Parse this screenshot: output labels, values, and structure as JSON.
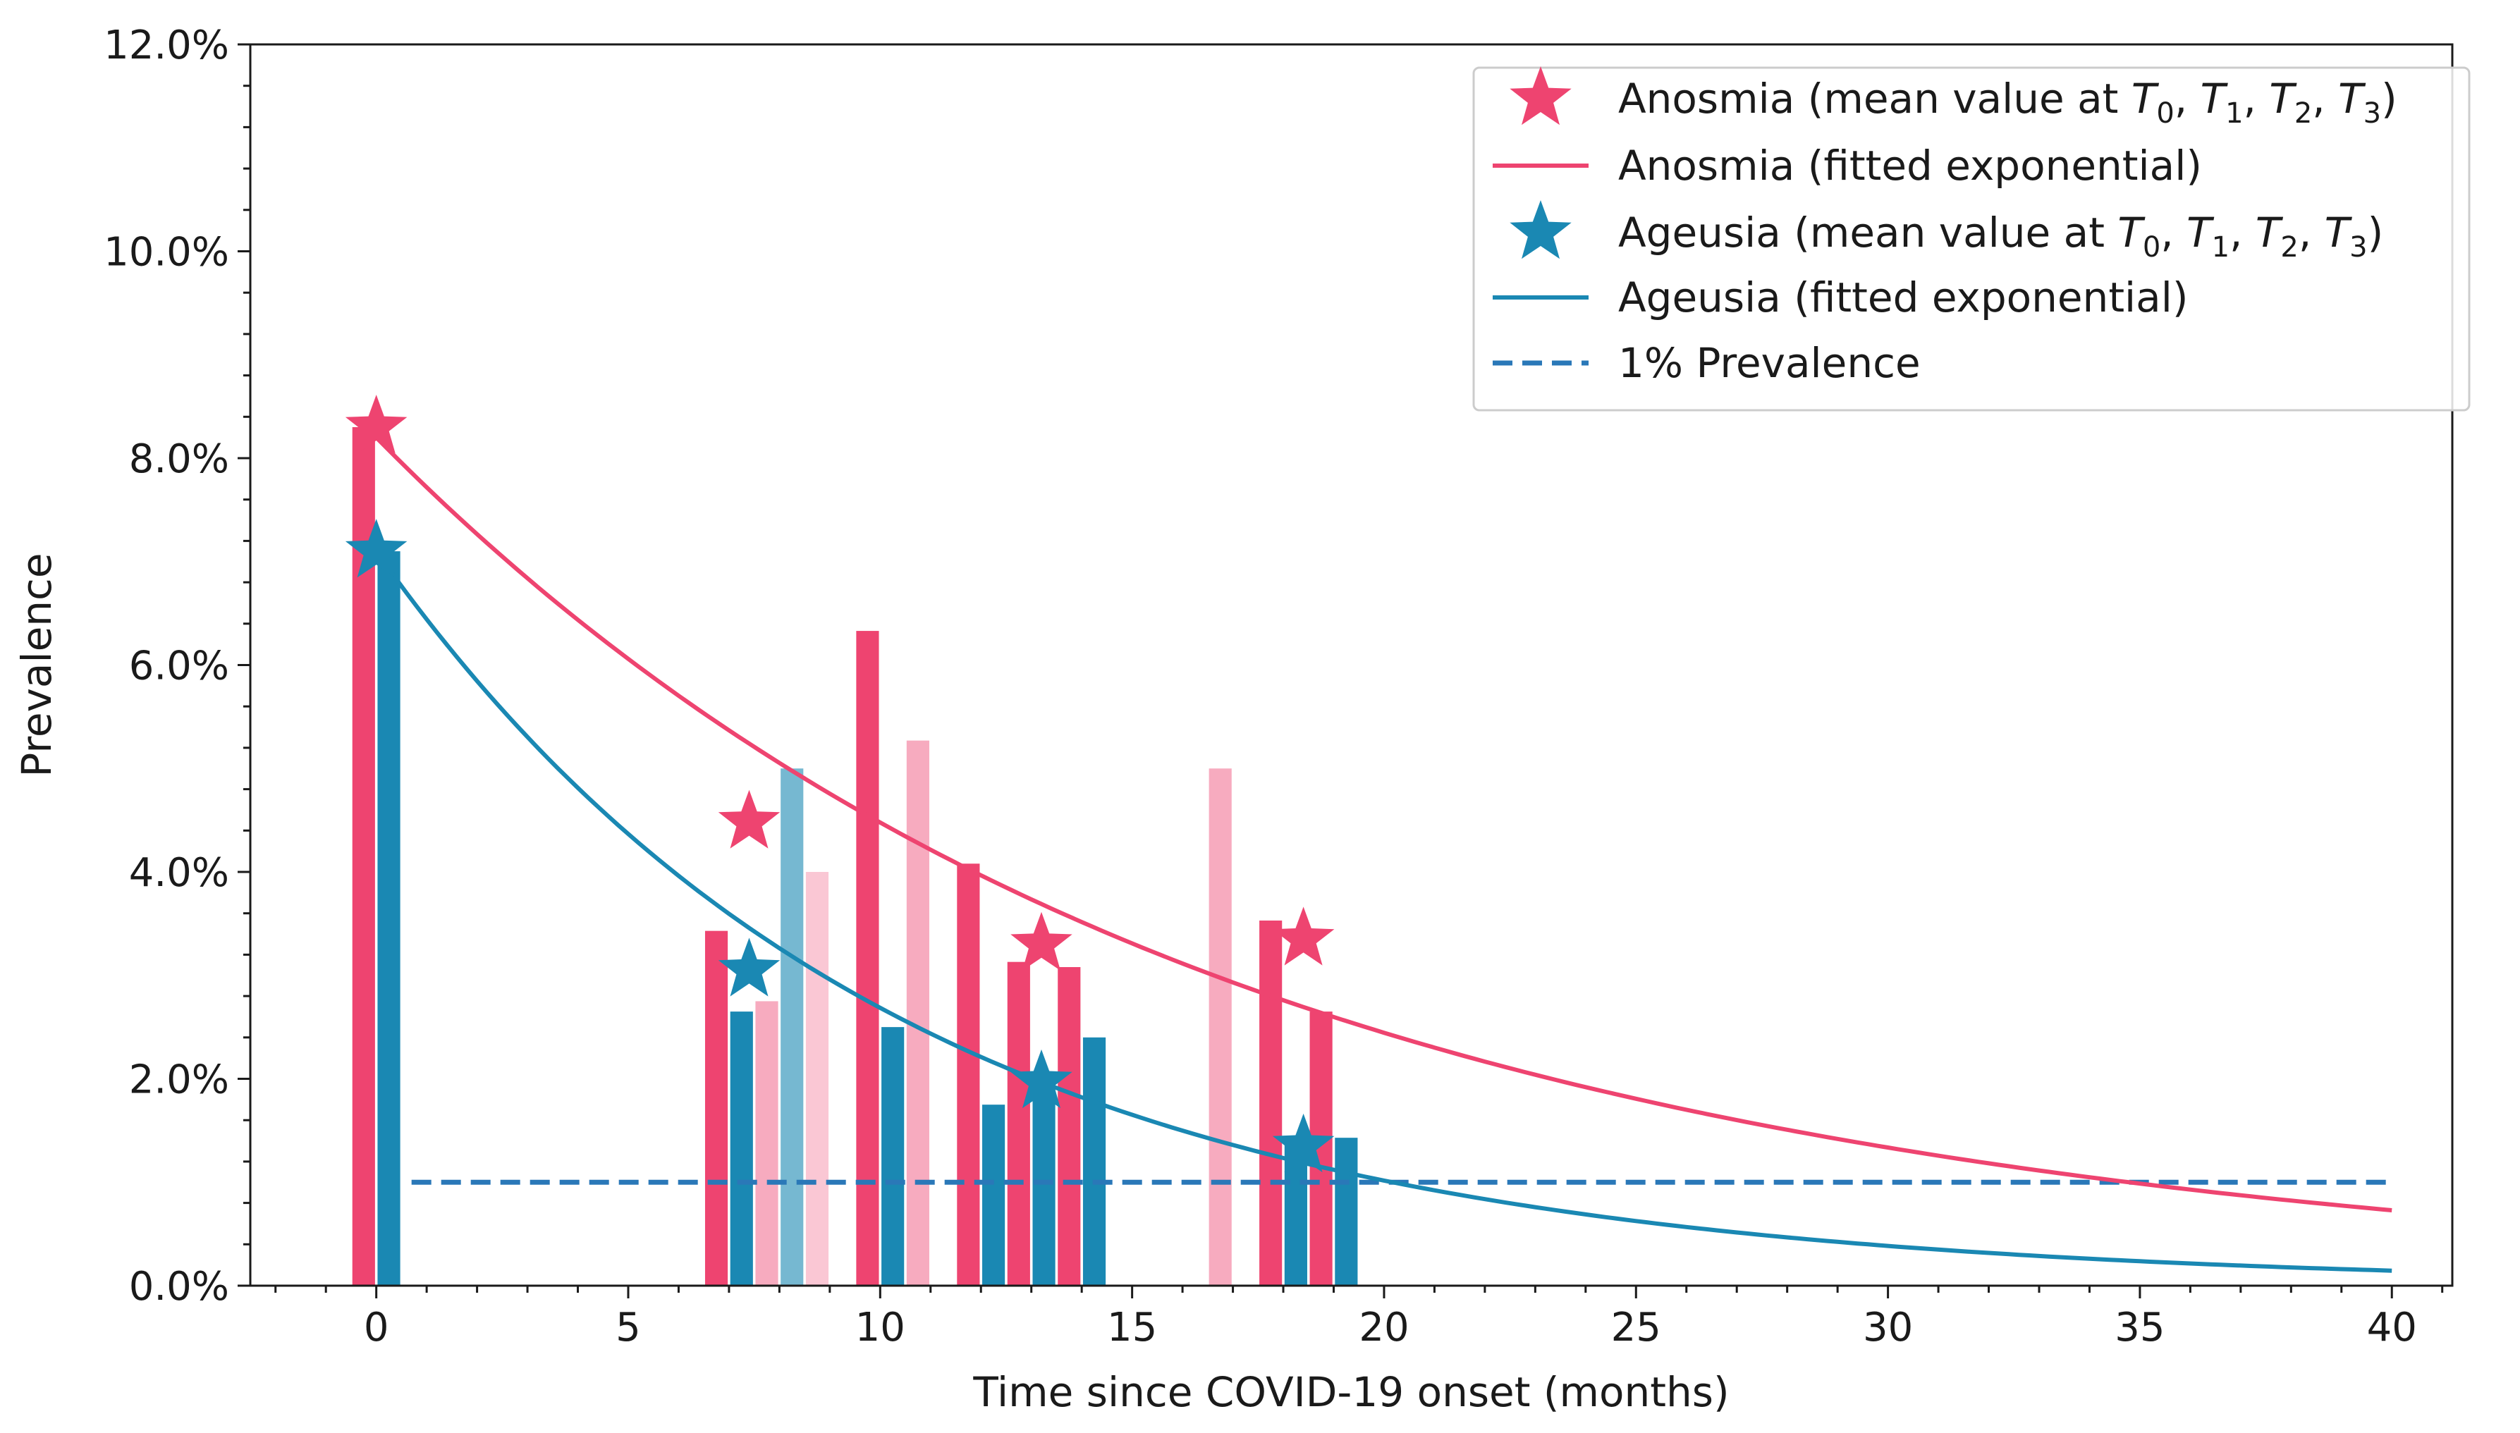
{
  "chart_data": {
    "type": "bar",
    "xlabel": "Time since COVID-19 onset (months)",
    "ylabel": "Prevalence",
    "xlim": [
      -2.5,
      41.2
    ],
    "ylim": [
      0,
      12
    ],
    "x_ticks": [
      0,
      5,
      10,
      15,
      20,
      25,
      30,
      35,
      40
    ],
    "x_tick_labels": [
      "0",
      "5",
      "10",
      "15",
      "20",
      "25",
      "30",
      "35",
      "40"
    ],
    "y_ticks": [
      0,
      2,
      4,
      6,
      8,
      10,
      12
    ],
    "y_tick_labels": [
      "0.0%",
      "2.0%",
      "4.0%",
      "6.0%",
      "8.0%",
      "10.0%",
      "12.0%"
    ],
    "x_minor_step": 1,
    "y_minor_step": 0.4,
    "colors": {
      "anosmia": "#ee4470",
      "anosmia_light": "#f4a8bd",
      "ageusia": "#1a88b3",
      "ageusia_light": "#75b8d3",
      "reference": "#2a78b8"
    },
    "bars": [
      {
        "x": -0.25,
        "value": 8.3,
        "series": "anosmia",
        "alpha": 1.0
      },
      {
        "x": 0.25,
        "value": 7.1,
        "series": "ageusia",
        "alpha": 1.0
      },
      {
        "x": 6.75,
        "value": 3.43,
        "series": "anosmia",
        "alpha": 1.0
      },
      {
        "x": 7.25,
        "value": 2.65,
        "series": "ageusia",
        "alpha": 1.0
      },
      {
        "x": 7.75,
        "value": 2.75,
        "series": "anosmia",
        "alpha": 0.45
      },
      {
        "x": 8.25,
        "value": 5.0,
        "series": "ageusia",
        "alpha": 0.6
      },
      {
        "x": 8.75,
        "value": 4.0,
        "series": "anosmia",
        "alpha": 0.3
      },
      {
        "x": 9.75,
        "value": 6.33,
        "series": "anosmia",
        "alpha": 1.0
      },
      {
        "x": 10.25,
        "value": 2.5,
        "series": "ageusia",
        "alpha": 1.0
      },
      {
        "x": 10.75,
        "value": 5.27,
        "series": "anosmia",
        "alpha": 0.45
      },
      {
        "x": 11.75,
        "value": 4.08,
        "series": "anosmia",
        "alpha": 1.0
      },
      {
        "x": 12.25,
        "value": 1.75,
        "series": "ageusia",
        "alpha": 1.0
      },
      {
        "x": 12.75,
        "value": 3.13,
        "series": "anosmia",
        "alpha": 1.0
      },
      {
        "x": 13.25,
        "value": 1.95,
        "series": "ageusia",
        "alpha": 1.0
      },
      {
        "x": 13.75,
        "value": 3.08,
        "series": "anosmia",
        "alpha": 1.0
      },
      {
        "x": 14.25,
        "value": 2.4,
        "series": "ageusia",
        "alpha": 1.0
      },
      {
        "x": 16.75,
        "value": 5.0,
        "series": "anosmia",
        "alpha": 0.45
      },
      {
        "x": 17.75,
        "value": 3.53,
        "series": "anosmia",
        "alpha": 1.0
      },
      {
        "x": 18.25,
        "value": 1.4,
        "series": "ageusia",
        "alpha": 1.0
      },
      {
        "x": 18.75,
        "value": 2.65,
        "series": "anosmia",
        "alpha": 1.0
      },
      {
        "x": 19.25,
        "value": 1.43,
        "series": "ageusia",
        "alpha": 1.0
      }
    ],
    "bar_width": 0.45,
    "mean_points": [
      {
        "series": "anosmia",
        "x": [
          0,
          7.4,
          13.2,
          18.4
        ],
        "y": [
          8.3,
          4.48,
          3.3,
          3.35
        ]
      },
      {
        "series": "ageusia",
        "x": [
          0,
          7.4,
          13.2,
          18.4
        ],
        "y": [
          7.1,
          3.05,
          1.97,
          1.35
        ]
      }
    ],
    "fitted": [
      {
        "series": "anosmia",
        "a": 8.2,
        "k": 0.0605,
        "x_range": [
          0,
          40
        ]
      },
      {
        "series": "ageusia",
        "a": 7.1,
        "k": 0.0972,
        "x_range": [
          0,
          40
        ]
      }
    ],
    "reference_line": {
      "y": 1.0,
      "x_range": [
        0.7,
        40
      ]
    },
    "legend": {
      "position": "top-right",
      "entries": [
        {
          "marker": "star",
          "series": "anosmia",
          "text": "Anosmia (mean value at ",
          "vars": [
            "T",
            "0",
            "T",
            "1",
            "T",
            "2",
            "T",
            "3"
          ]
        },
        {
          "marker": "line",
          "series": "anosmia",
          "text": "Anosmia (fitted exponential)"
        },
        {
          "marker": "star",
          "series": "ageusia",
          "text": "Ageusia (mean value at ",
          "vars": [
            "T",
            "0",
            "T",
            "1",
            "T",
            "2",
            "T",
            "3"
          ]
        },
        {
          "marker": "line",
          "series": "ageusia",
          "text": "Ageusia (fitted exponential)"
        },
        {
          "marker": "dashed",
          "series": "reference",
          "text": "1% Prevalence"
        }
      ]
    }
  }
}
